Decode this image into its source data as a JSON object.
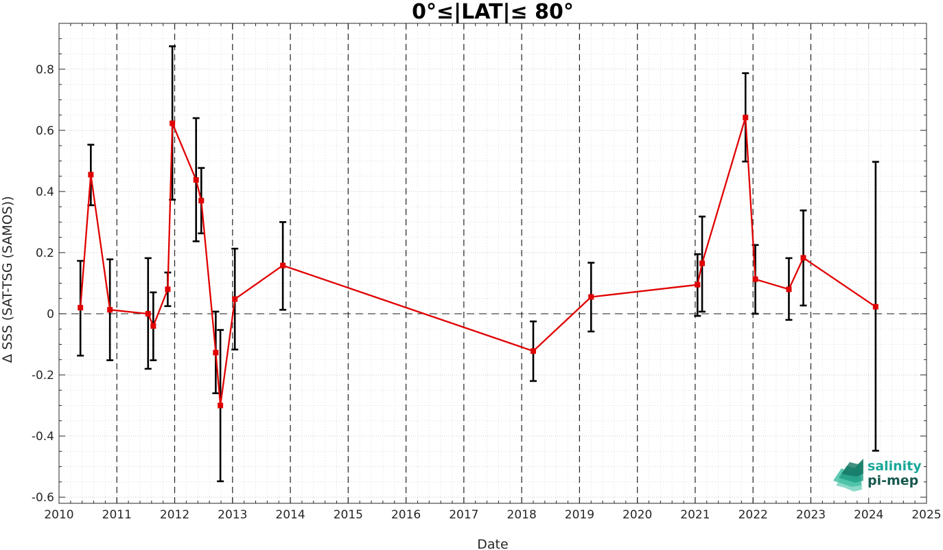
{
  "chart_data": {
    "type": "line",
    "title": "0°≤|LAT|≤ 80°",
    "xlabel": "Date",
    "ylabel": "Δ SSS (SAT-TSG (SAMOS))",
    "xlim": [
      2010,
      2025
    ],
    "ylim": [
      -0.62,
      0.95
    ],
    "x_ticks": [
      "2010",
      "2011",
      "2012",
      "2013",
      "2014",
      "2015",
      "2016",
      "2017",
      "2018",
      "2019",
      "2020",
      "2021",
      "2022",
      "2023",
      "2024",
      "2025"
    ],
    "y_ticks": [
      {
        "value": -0.6,
        "label": "-0.6"
      },
      {
        "value": -0.4,
        "label": "-0.4"
      },
      {
        "value": -0.2,
        "label": "-0.2"
      },
      {
        "value": 0,
        "label": "0"
      },
      {
        "value": 0.2,
        "label": "0.2"
      },
      {
        "value": 0.4,
        "label": "0.4"
      },
      {
        "value": 0.6,
        "label": "0.6"
      },
      {
        "value": 0.8,
        "label": "0.8"
      }
    ],
    "grid": "major and minor, dotted",
    "reference_line": {
      "y": 0,
      "style": "dashed"
    },
    "year_lines": {
      "style": "dashed vertical",
      "at_years": [
        2011,
        2012,
        2013,
        2014,
        2015,
        2016,
        2017,
        2018,
        2019,
        2020,
        2021,
        2022,
        2023
      ]
    },
    "series": [
      {
        "color": "#e00000",
        "errorbar_color": "#000000",
        "marker": "square",
        "points": [
          {
            "x": 2010.37,
            "y": 0.02,
            "low": -0.137,
            "high": 0.173
          },
          {
            "x": 2010.55,
            "y": 0.455,
            "low": 0.355,
            "high": 0.553
          },
          {
            "x": 2010.88,
            "y": 0.013,
            "low": -0.152,
            "high": 0.178
          },
          {
            "x": 2011.54,
            "y": 0.0,
            "low": -0.18,
            "high": 0.182
          },
          {
            "x": 2011.63,
            "y": -0.04,
            "low": -0.152,
            "high": 0.07
          },
          {
            "x": 2011.88,
            "y": 0.08,
            "low": 0.025,
            "high": 0.135
          },
          {
            "x": 2011.96,
            "y": 0.623,
            "low": 0.373,
            "high": 0.875
          },
          {
            "x": 2012.37,
            "y": 0.438,
            "low": 0.237,
            "high": 0.64
          },
          {
            "x": 2012.46,
            "y": 0.37,
            "low": 0.263,
            "high": 0.477
          },
          {
            "x": 2012.71,
            "y": -0.127,
            "low": -0.26,
            "high": 0.007
          },
          {
            "x": 2012.79,
            "y": -0.3,
            "low": -0.548,
            "high": -0.053
          },
          {
            "x": 2013.04,
            "y": 0.048,
            "low": -0.117,
            "high": 0.213
          },
          {
            "x": 2013.87,
            "y": 0.158,
            "low": 0.013,
            "high": 0.3
          },
          {
            "x": 2018.2,
            "y": -0.122,
            "low": -0.22,
            "high": -0.025
          },
          {
            "x": 2019.2,
            "y": 0.055,
            "low": -0.058,
            "high": 0.167
          },
          {
            "x": 2021.04,
            "y": 0.095,
            "low": -0.007,
            "high": 0.195
          },
          {
            "x": 2021.12,
            "y": 0.165,
            "low": 0.007,
            "high": 0.318
          },
          {
            "x": 2021.87,
            "y": 0.642,
            "low": 0.498,
            "high": 0.787
          },
          {
            "x": 2022.04,
            "y": 0.113,
            "low": 0.0,
            "high": 0.225
          },
          {
            "x": 2022.62,
            "y": 0.08,
            "low": -0.02,
            "high": 0.182
          },
          {
            "x": 2022.87,
            "y": 0.183,
            "low": 0.027,
            "high": 0.338
          },
          {
            "x": 2024.12,
            "y": 0.023,
            "low": -0.448,
            "high": 0.497
          }
        ]
      }
    ]
  },
  "logo": {
    "line1": "salinity",
    "line2": "pi-mep",
    "color1": "#1aa89a",
    "color2": "#17594f"
  }
}
